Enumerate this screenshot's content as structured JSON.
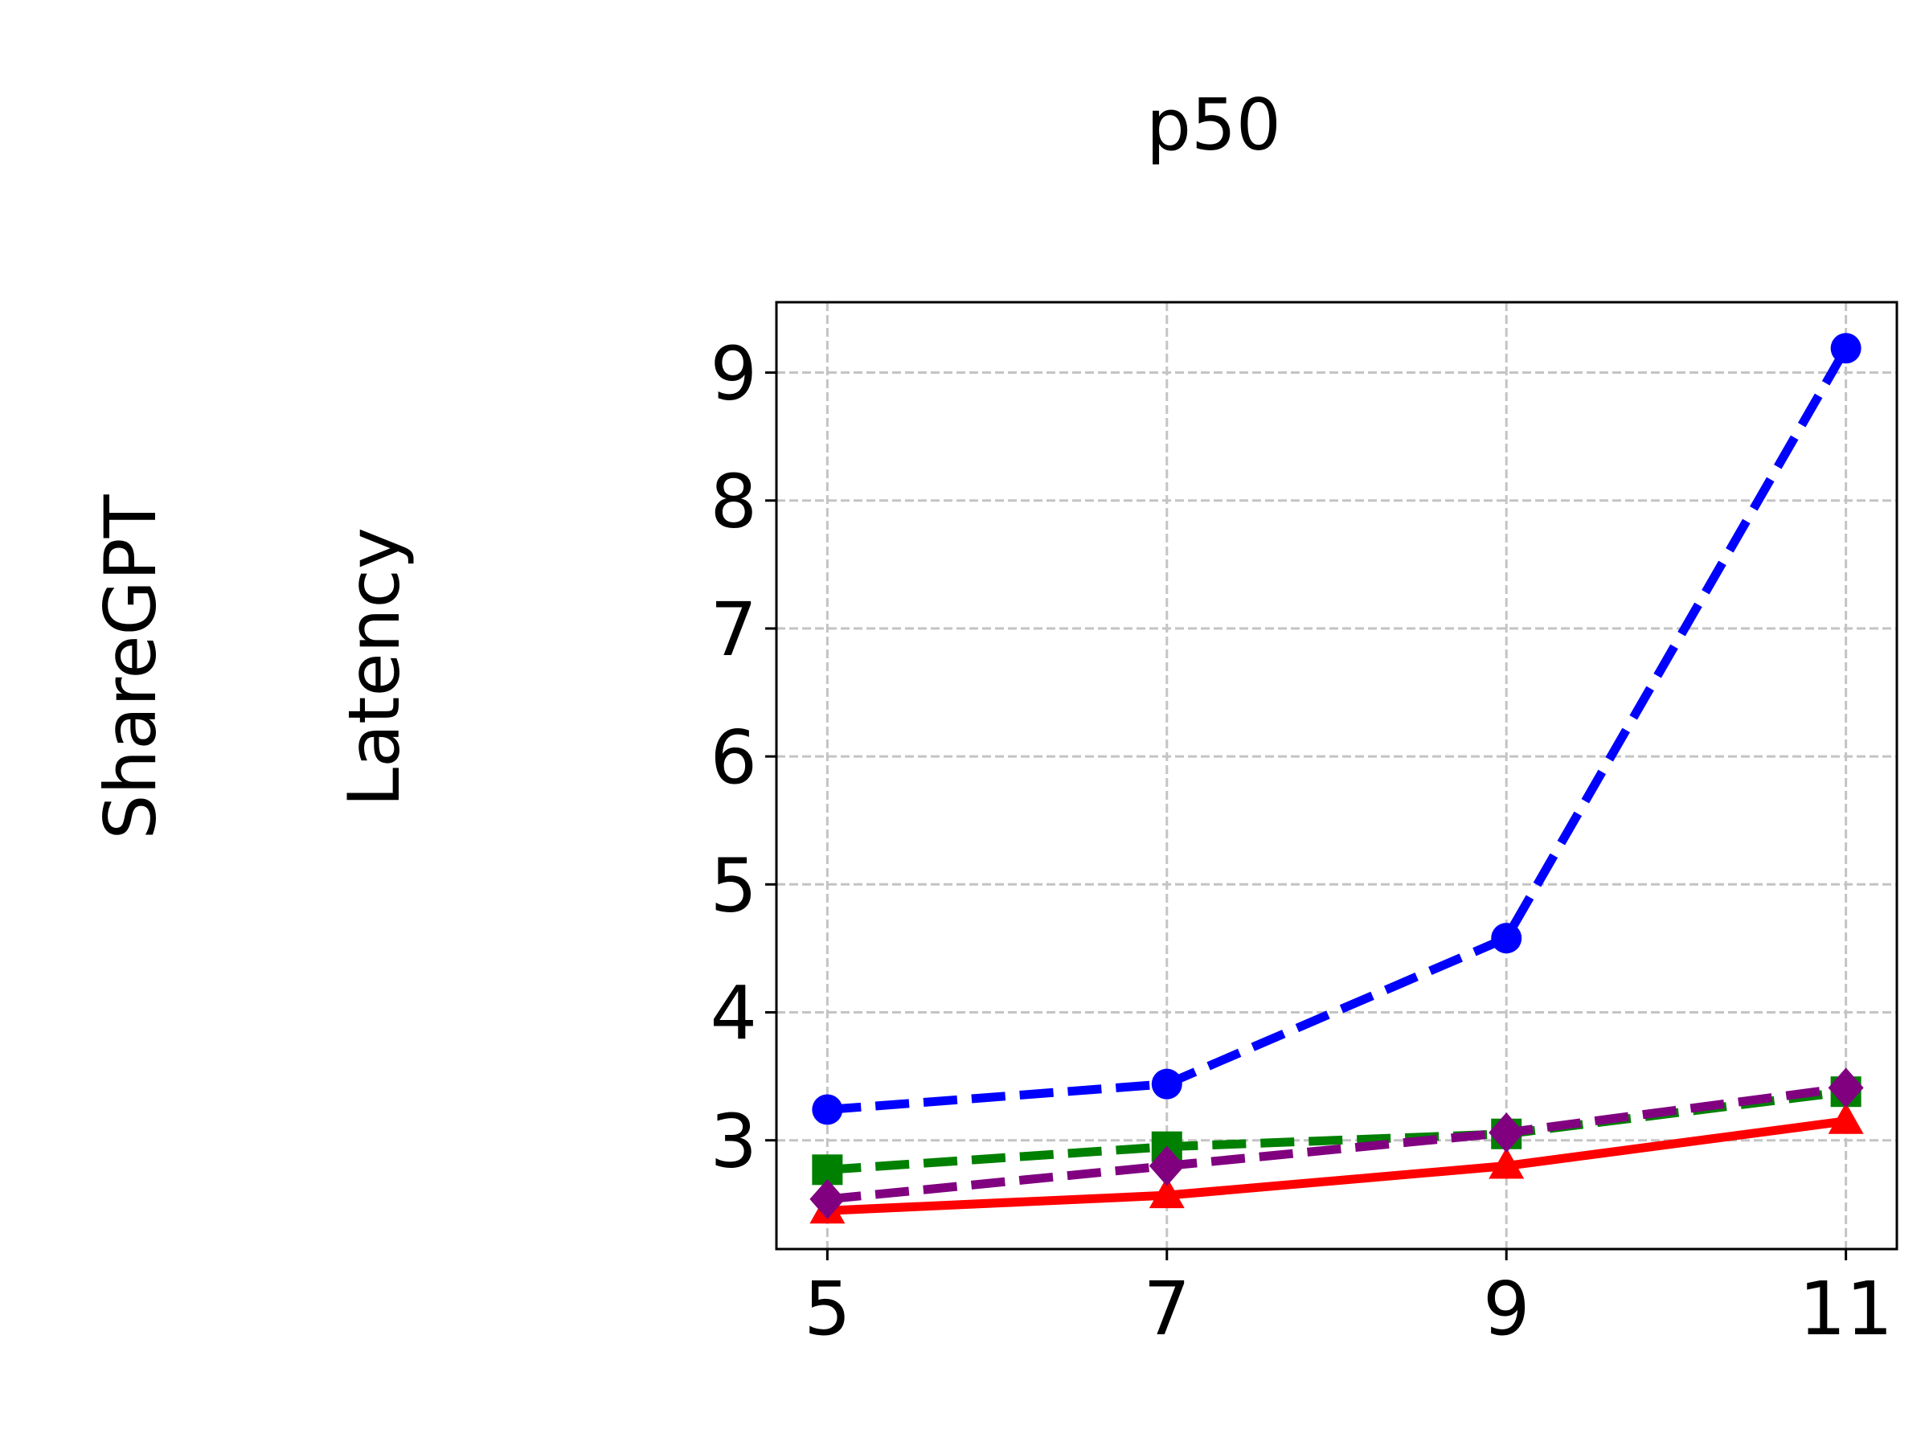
{
  "chart_data": {
    "type": "line",
    "title": "p50",
    "row_label": "ShareGPT",
    "ylabel": "Latency",
    "xlabel": "",
    "x": [
      5,
      7,
      9,
      11
    ],
    "xticks": [
      "5",
      "7",
      "9",
      "11"
    ],
    "yticks": [
      "3",
      "4",
      "5",
      "6",
      "7",
      "8",
      "9"
    ],
    "xlim": [
      4.7,
      11.3
    ],
    "ylim": [
      2.15,
      9.55
    ],
    "grid": true,
    "series": [
      {
        "values": [
          3.24,
          3.44,
          4.58,
          9.19
        ],
        "color": "#0000ff",
        "line_style": "dashed",
        "marker": "circle"
      },
      {
        "values": [
          2.77,
          2.95,
          3.05,
          3.38
        ],
        "color": "#008000",
        "line_style": "dashed",
        "marker": "square"
      },
      {
        "values": [
          2.45,
          2.57,
          2.8,
          3.15
        ],
        "color": "#ff0000",
        "line_style": "solid",
        "marker": "triangle"
      },
      {
        "values": [
          2.54,
          2.8,
          3.06,
          3.41
        ],
        "color": "#800080",
        "line_style": "dashed",
        "marker": "diamond"
      }
    ]
  }
}
